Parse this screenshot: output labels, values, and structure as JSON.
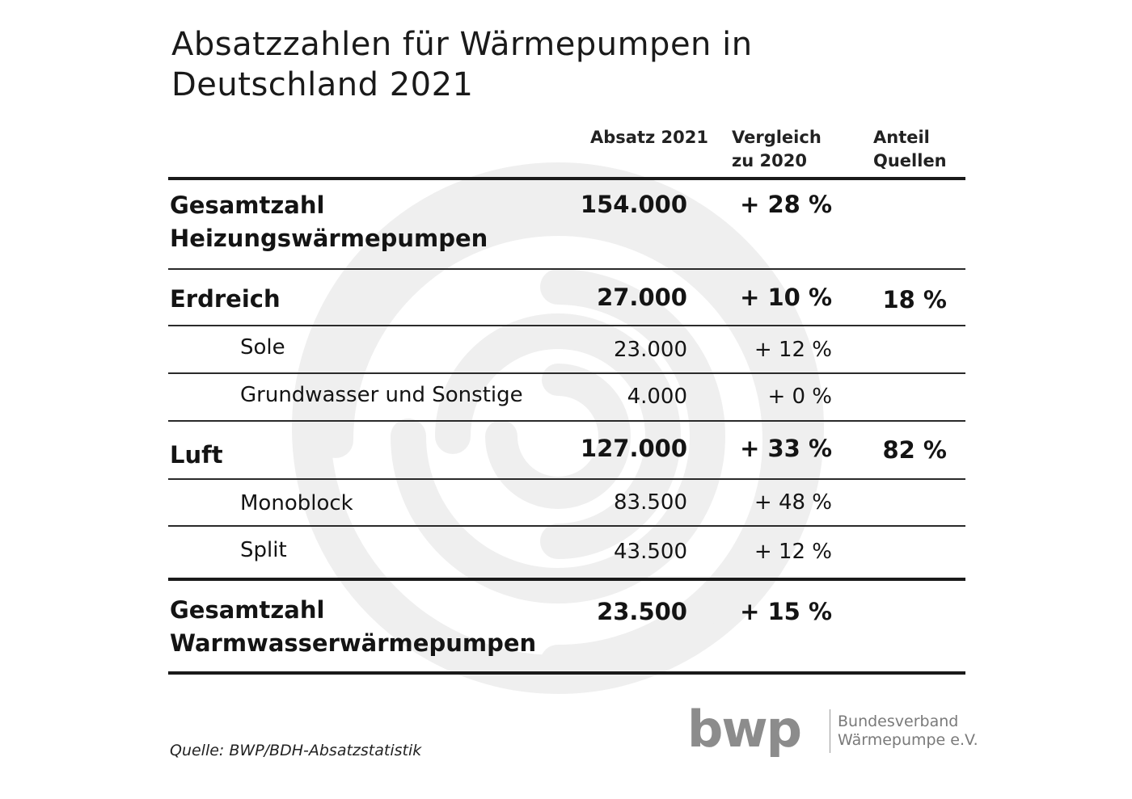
{
  "title": {
    "line1": "Absatzzahlen für Wärmepumpen in",
    "line2": "Deutschland 2021"
  },
  "columns": {
    "absatz": "Absatz 2021",
    "vergleich_line1": "Vergleich",
    "vergleich_line2": "zu 2020",
    "anteil_line1": "Anteil",
    "anteil_line2": "Quellen"
  },
  "chart_data": {
    "type": "table",
    "title": "Absatzzahlen für Wärmepumpen in Deutschland 2021",
    "columns": [
      "",
      "Absatz 2021",
      "Vergleich zu 2020",
      "Anteil Quellen"
    ],
    "rows": [
      {
        "label_line1": "Gesamtzahl",
        "label_line2": "Heizungswärmepumpen",
        "absatz": "154.000",
        "vergleich": "+ 28 %",
        "anteil": ""
      },
      {
        "label": "Erdreich",
        "absatz": "27.000",
        "vergleich": "+ 10 %",
        "anteil": "18 %"
      },
      {
        "label": "Sole",
        "absatz": "23.000",
        "vergleich": "+ 12 %",
        "anteil": ""
      },
      {
        "label": "Grundwasser und Sonstige",
        "absatz": "4.000",
        "vergleich": "+ 0 %",
        "anteil": ""
      },
      {
        "label": "Luft",
        "absatz": "127.000",
        "vergleich": "+ 33 %",
        "anteil": "82 %"
      },
      {
        "label": "Monoblock",
        "absatz": "83.500",
        "vergleich": "+ 48 %",
        "anteil": ""
      },
      {
        "label": "Split",
        "absatz": "43.500",
        "vergleich": "+ 12 %",
        "anteil": ""
      },
      {
        "label_line1": "Gesamtzahl",
        "label_line2": "Warmwasserwärmepumpen",
        "absatz": "23.500",
        "vergleich": "+ 15 %",
        "anteil": ""
      }
    ]
  },
  "source": "Quelle: BWP/BDH-Absatzstatistik",
  "logo": {
    "mark": "bwp",
    "line1": "Bundesverband",
    "line2": "Wärmepumpe e.V."
  },
  "colors": {
    "text": "#141414",
    "rule": "#1a1a1a",
    "swirl": "#f0f0f0",
    "logo": "#8c8c8c"
  },
  "icons": {
    "background": "spiral-watermark-icon"
  }
}
